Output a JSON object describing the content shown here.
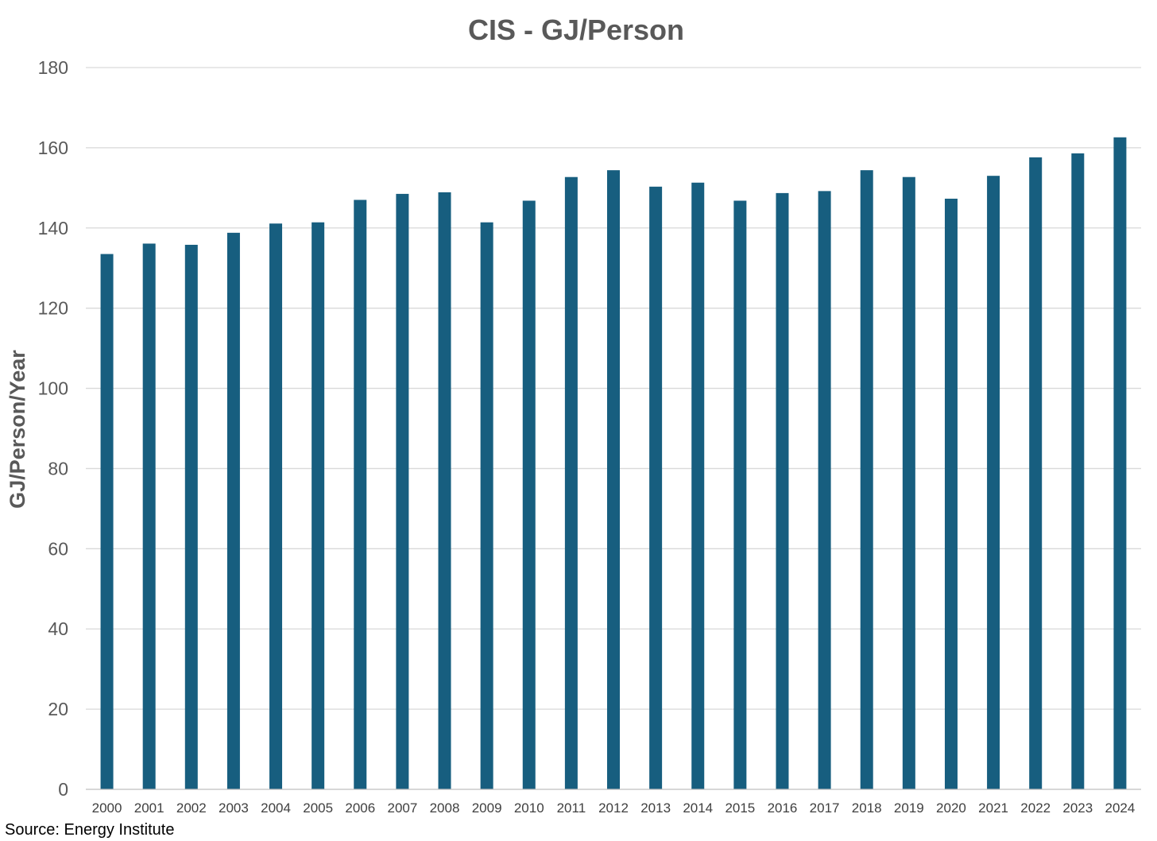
{
  "chart_data": {
    "type": "bar",
    "title": "CIS - GJ/Person",
    "ylabel": "GJ/Person/Year",
    "xlabel": "",
    "ylim": [
      0,
      180
    ],
    "yticks": [
      0,
      20,
      40,
      60,
      80,
      100,
      120,
      140,
      160,
      180
    ],
    "grid": true,
    "legend": "none",
    "bar_color": "#175e7f",
    "categories": [
      "2000",
      "2001",
      "2002",
      "2003",
      "2004",
      "2005",
      "2006",
      "2007",
      "2008",
      "2009",
      "2010",
      "2011",
      "2012",
      "2013",
      "2014",
      "2015",
      "2016",
      "2017",
      "2018",
      "2019",
      "2020",
      "2021",
      "2022",
      "2023",
      "2024"
    ],
    "values": [
      133.5,
      136.1,
      135.8,
      138.8,
      141.1,
      141.4,
      147.0,
      148.5,
      148.9,
      141.4,
      146.8,
      152.7,
      154.4,
      150.3,
      151.3,
      146.8,
      148.7,
      149.2,
      154.4,
      152.7,
      147.3,
      153.0,
      157.6,
      158.6,
      162.6
    ]
  },
  "source_note": "Source: Energy Institute"
}
